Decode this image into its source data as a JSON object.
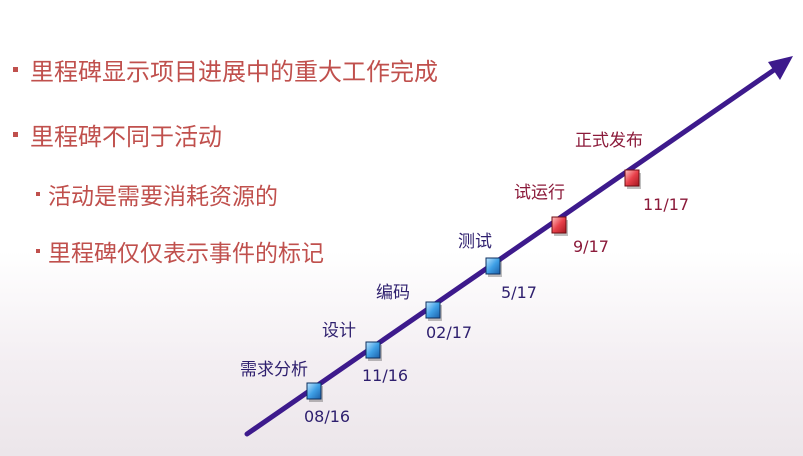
{
  "bullets": [
    {
      "text": "里程碑显示项目进展中的重大工作完成",
      "level": 1
    },
    {
      "text": "里程碑不同于活动",
      "level": 1
    },
    {
      "text": "活动是需要消耗资源的",
      "level": 2
    },
    {
      "text": "里程碑仅仅表示事件的标记",
      "level": 2
    }
  ],
  "milestones": [
    {
      "name": "需求分析",
      "date": "08/16",
      "status": "normal"
    },
    {
      "name": "设计",
      "date": "11/16",
      "status": "normal"
    },
    {
      "name": "编码",
      "date": "02/17",
      "status": "normal"
    },
    {
      "name": "测试",
      "date": "5/17",
      "status": "normal"
    },
    {
      "name": "试运行",
      "date": "9/17",
      "status": "highlight"
    },
    {
      "name": "正式发布",
      "date": "11/17",
      "status": "highlight"
    }
  ],
  "colors": {
    "bullet_text": "#c0504d",
    "arrow": "#3d1a8c",
    "label_normal": "#2e1f6e",
    "label_highlight": "#8b1a3a",
    "marker_blue": "#3fa0e6",
    "marker_red": "#e8404a"
  }
}
